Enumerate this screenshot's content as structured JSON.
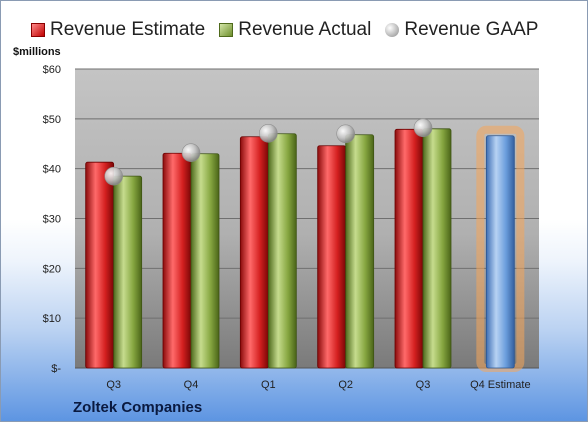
{
  "legend": {
    "estimate": "Revenue Estimate",
    "actual": "Revenue Actual",
    "gaap": "Revenue GAAP"
  },
  "unit_label": "$millions",
  "company": "Zoltek Companies",
  "colors": {
    "estimate": "#c81e1e",
    "actual": "#7a9a35",
    "gaap": "#b0b0b0",
    "forecast": "#5b8fd4",
    "forecast_glow": "#f5a55a"
  },
  "chart_data": {
    "type": "bar",
    "categories": [
      "Q3",
      "Q4",
      "Q1",
      "Q2",
      "Q3",
      "Q4 Estimate"
    ],
    "y_ticks": [
      "$-",
      "$10",
      "$20",
      "$30",
      "$40",
      "$50",
      "$60"
    ],
    "ylim": [
      0,
      60
    ],
    "grid": true,
    "legend_position": "top",
    "series": [
      {
        "name": "Revenue Estimate",
        "type": "bar",
        "values": [
          41.3,
          43.1,
          46.4,
          44.6,
          47.9,
          null
        ]
      },
      {
        "name": "Revenue Actual",
        "type": "bar",
        "values": [
          38.5,
          43.0,
          47.0,
          46.8,
          48.0,
          null
        ]
      },
      {
        "name": "Revenue GAAP",
        "type": "marker",
        "values": [
          38.5,
          43.2,
          47.1,
          47.0,
          48.2,
          null
        ]
      }
    ],
    "forecast": {
      "category": "Q4 Estimate",
      "value": 46.6
    }
  }
}
